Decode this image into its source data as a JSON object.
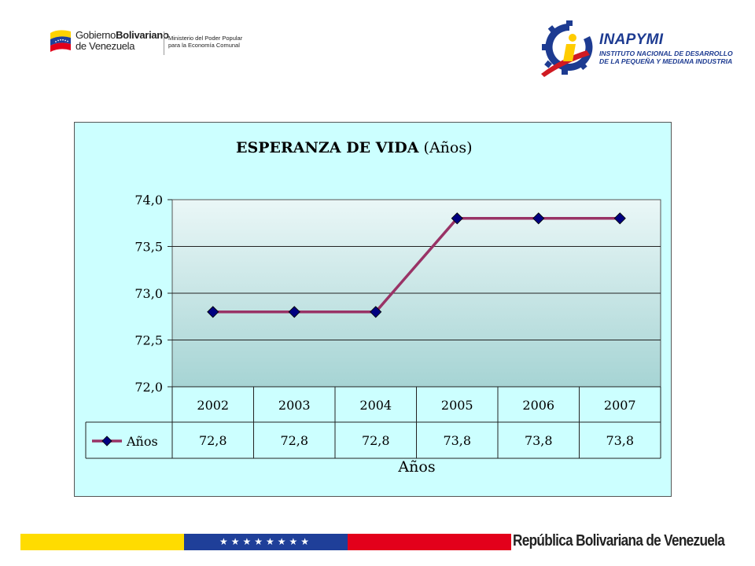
{
  "header": {
    "gov_logo": {
      "line1_regular": "Gobierno",
      "line1_bold": "Bolivariano",
      "line2": "de Venezuela",
      "ministry_line1": "Ministerio del Poder Popular",
      "ministry_line2": "para la Economía Comunal",
      "flag_colors": [
        "#ffd200",
        "#1f3f99",
        "#e3001b"
      ]
    },
    "inapymi_logo": {
      "brand": "INAPYMI",
      "line1": "INSTITUTO NACIONAL DE DESARROLLO",
      "line2": "DE LA PEQUEÑA Y MEDIANA INDUSTRIA",
      "icon": "gear-i-icon",
      "colors": {
        "blue": "#1d3b91",
        "red": "#d01a22",
        "yellow": "#ffcc00"
      }
    }
  },
  "chart_data": {
    "type": "line",
    "title_bold": "ESPERANZA DE VIDA",
    "title_suffix": "(Años)",
    "xlabel": "Años",
    "ylabel": "",
    "categories": [
      "2002",
      "2003",
      "2004",
      "2005",
      "2006",
      "2007"
    ],
    "series": [
      {
        "name": "Años",
        "values": [
          72.8,
          72.8,
          72.8,
          73.8,
          73.8,
          73.8
        ],
        "value_labels": [
          "72,8",
          "72,8",
          "72,8",
          "73,8",
          "73,8",
          "73,8"
        ],
        "color": "#993366",
        "marker_color": "#000080"
      }
    ],
    "ylim": [
      72.0,
      74.0
    ],
    "yticks": [
      72.0,
      72.5,
      73.0,
      73.5,
      74.0
    ],
    "ytick_labels": [
      "72,0",
      "72,5",
      "73,0",
      "73,5",
      "74,0"
    ],
    "grid": true,
    "data_table": true,
    "background_color": "#ccffff"
  },
  "footer": {
    "text": "República Bolivariana de Venezuela",
    "stars": "★★★★★★★★",
    "band_colors": [
      "#ffdc00",
      "#1f3f99",
      "#e3001b"
    ]
  }
}
